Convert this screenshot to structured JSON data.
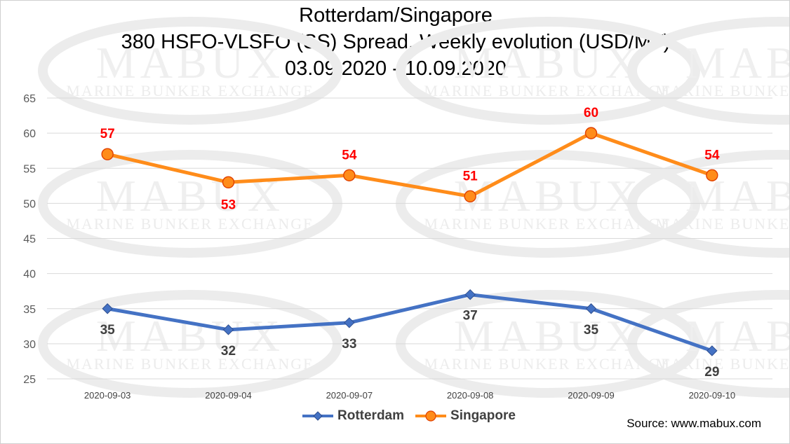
{
  "chart_data": {
    "type": "line",
    "title": [
      "Rotterdam/Singapore",
      "380 HSFO-VLSFO (SS) Spread, Weekly evolution (USD/MT)",
      "03.09.2020 - 10.09.2020"
    ],
    "categories": [
      "2020-09-03",
      "2020-09-04",
      "2020-09-07",
      "2020-09-08",
      "2020-09-09",
      "2020-09-10"
    ],
    "ylim": [
      25,
      65
    ],
    "yticks": [
      25,
      30,
      35,
      40,
      45,
      50,
      55,
      60,
      65
    ],
    "grid": true,
    "legend_position": "bottom",
    "series": [
      {
        "name": "Rotterdam",
        "values": [
          35,
          32,
          33,
          37,
          35,
          29
        ],
        "color": "#4472C4",
        "marker": "diamond",
        "label_color": "#404040",
        "label_position": "below"
      },
      {
        "name": "Singapore",
        "values": [
          57,
          53,
          54,
          51,
          60,
          54
        ],
        "color": "#FF8C1A",
        "marker": "circle",
        "label_color": "#FF0000",
        "label_position": "mixed"
      }
    ]
  },
  "source": "Source: www.mabux.com",
  "watermark": {
    "text": "MABUX",
    "subtext": "MARINE BUNKER EXCHANGE"
  }
}
